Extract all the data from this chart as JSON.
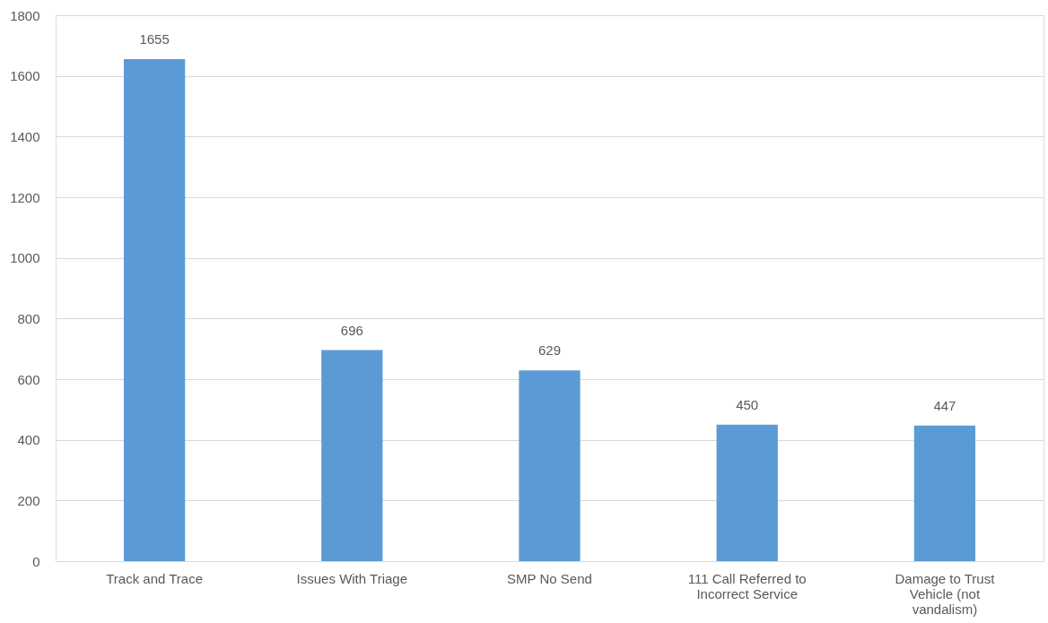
{
  "chart_data": {
    "type": "bar",
    "categories": [
      "Track and Trace",
      "Issues With Triage",
      "SMP No Send",
      "111 Call Referred to Incorrect Service",
      "Damage to Trust Vehicle (not vandalism)"
    ],
    "values": [
      1655,
      696,
      629,
      450,
      447
    ],
    "color": "#5b9bd5",
    "ylim": [
      0,
      1800
    ],
    "yticks": [
      0,
      200,
      400,
      600,
      800,
      1000,
      1200,
      1400,
      1600,
      1800
    ],
    "grid": "y",
    "data_labels": true
  }
}
